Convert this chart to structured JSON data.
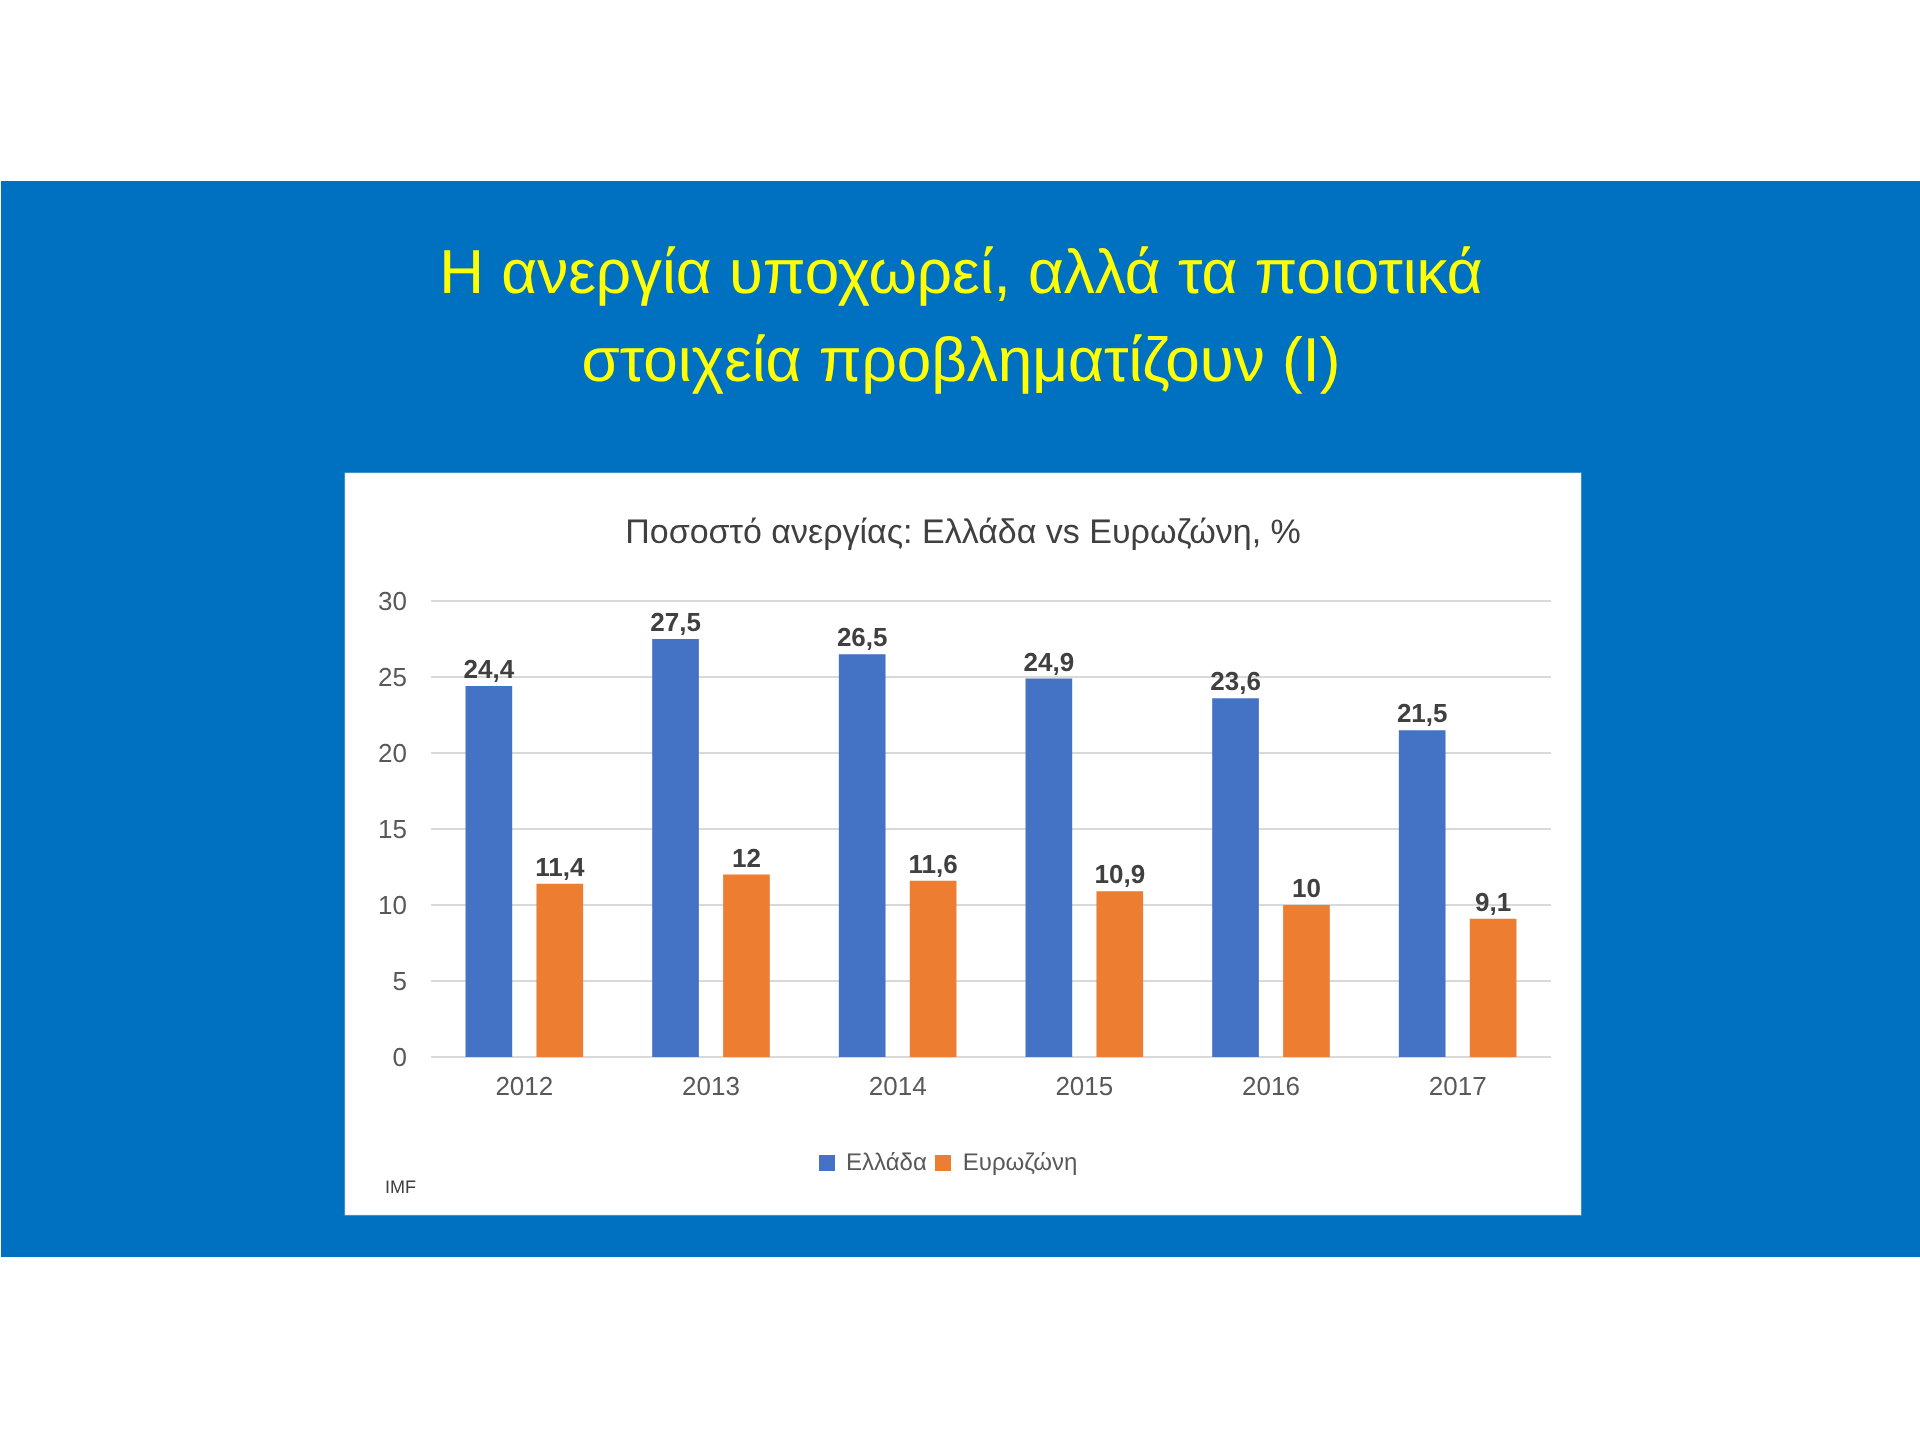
{
  "chart_data": {
    "type": "bar",
    "title": "Η ανεργία υποχωρεί, αλλά τα ποιοτικά στοιχεία προβληματίζουν (I)",
    "subtitle": "Ποσοστό ανεργίας: Ελλάδα vs Ευρωζώνη, %",
    "categories": [
      "2012",
      "2013",
      "2014",
      "2015",
      "2016",
      "2017"
    ],
    "series": [
      {
        "name": "Ελλάδα",
        "color": "#4472c4",
        "values": [
          24.4,
          27.5,
          26.5,
          24.9,
          23.6,
          21.5
        ],
        "value_labels": [
          "24,4",
          "27,5",
          "26,5",
          "24,9",
          "23,6",
          "21,5"
        ]
      },
      {
        "name": "Ευρωζώνη",
        "color": "#ed7d31",
        "values": [
          11.4,
          12,
          11.6,
          10.9,
          10,
          9.1
        ],
        "value_labels": [
          "11,4",
          "12",
          "11,6",
          "10,9",
          "10",
          "9,1"
        ]
      }
    ],
    "ylim": [
      0,
      30
    ],
    "yticks": [
      0,
      5,
      10,
      15,
      20,
      25,
      30
    ],
    "grid": "y",
    "legend": "bottom",
    "annotations": [
      "IMF"
    ]
  }
}
